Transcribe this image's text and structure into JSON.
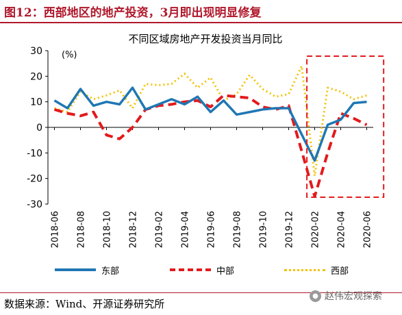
{
  "figure": {
    "title": "图12：西部地区的地产投资，3月即出现明显修复",
    "source": "数据来源：Wind、开源证券研究所",
    "watermark": "赵伟宏观探索"
  },
  "colors": {
    "east": "#1f77b4",
    "central": "#e31a1c",
    "west": "#f2c200",
    "highlight": "#e31a1c",
    "accent": "#b0182b"
  },
  "icons": {
    "watermark": "wechat-icon"
  },
  "chart_data": {
    "type": "line",
    "title": "不同区域房地产开发投资当月同比",
    "unit_label": "(%)",
    "ylim": [
      -30,
      30
    ],
    "yticks": [
      -30,
      -20,
      -10,
      0,
      10,
      20,
      30
    ],
    "x": [
      "2018-06",
      "2018-07",
      "2018-08",
      "2018-09",
      "2018-10",
      "2018-11",
      "2018-12",
      "2019-01",
      "2019-02",
      "2019-03",
      "2019-04",
      "2019-05",
      "2019-06",
      "2019-07",
      "2019-08",
      "2019-09",
      "2019-10",
      "2019-11",
      "2019-12",
      "2020-01",
      "2020-02",
      "2020-03",
      "2020-04",
      "2020-05",
      "2020-06"
    ],
    "xticks": [
      "2018-06",
      "2018-08",
      "2018-10",
      "2018-12",
      "2019-02",
      "2019-04",
      "2019-06",
      "2019-08",
      "2019-10",
      "2019-12",
      "2020-02",
      "2020-04",
      "2020-06"
    ],
    "series": [
      {
        "name": "东部",
        "key": "east",
        "style": "solid",
        "values": [
          10.5,
          7.5,
          15.0,
          8.5,
          10.0,
          9.0,
          15.5,
          7.0,
          9.0,
          11.0,
          9.0,
          12.0,
          6.0,
          10.5,
          5.0,
          6.0,
          7.0,
          7.5,
          7.5,
          null,
          -13.0,
          1.0,
          3.0,
          9.5,
          10.0
        ]
      },
      {
        "name": "中部",
        "key": "central",
        "style": "dashed",
        "values": [
          7.0,
          5.5,
          4.5,
          6.0,
          -3.0,
          -4.5,
          0.0,
          7.0,
          8.5,
          9.0,
          10.0,
          10.5,
          8.0,
          12.5,
          12.0,
          11.5,
          8.0,
          7.0,
          8.5,
          null,
          -27.0,
          -10.0,
          5.5,
          3.5,
          1.0
        ]
      },
      {
        "name": "西部",
        "key": "west",
        "style": "dotted",
        "values": [
          7.5,
          6.0,
          14.0,
          11.0,
          12.5,
          14.5,
          7.5,
          17.0,
          16.5,
          17.0,
          21.0,
          15.5,
          19.5,
          10.5,
          13.0,
          20.5,
          15.0,
          12.0,
          13.0,
          24.0,
          -19.0,
          15.5,
          14.0,
          11.0,
          12.5
        ]
      }
    ],
    "highlight_range": [
      "2020-03",
      "2020-06"
    ],
    "legend_position": "bottom",
    "grid": false
  }
}
